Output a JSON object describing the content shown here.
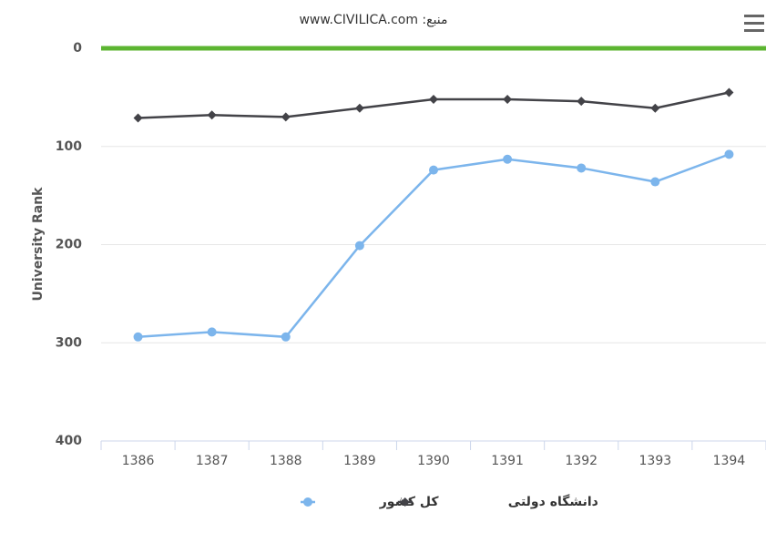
{
  "chart_data": {
    "type": "line",
    "title": "منبع: www.CIVILICA.com",
    "y_label": "University Rank",
    "categories": [
      "1386",
      "1387",
      "1388",
      "1389",
      "1390",
      "1391",
      "1392",
      "1393",
      "1394"
    ],
    "series": [
      {
        "name": "کل کشور",
        "color": "#7cb5ec",
        "marker": "circle",
        "values": [
          294,
          289,
          294,
          201,
          124,
          113,
          122,
          136,
          108
        ]
      },
      {
        "name": "دانشگاه دولتی",
        "color": "#434348",
        "marker": "diamond",
        "values": [
          71,
          68,
          70,
          61,
          52,
          52,
          54,
          61,
          45
        ]
      }
    ],
    "ylim": [
      0,
      400
    ],
    "yticks": [
      0,
      100,
      200,
      300,
      400
    ],
    "y_reversed": true,
    "grid": true,
    "plot_lines": [
      {
        "value": 0,
        "color": "#5cb531"
      }
    ],
    "legend": "bottom"
  }
}
